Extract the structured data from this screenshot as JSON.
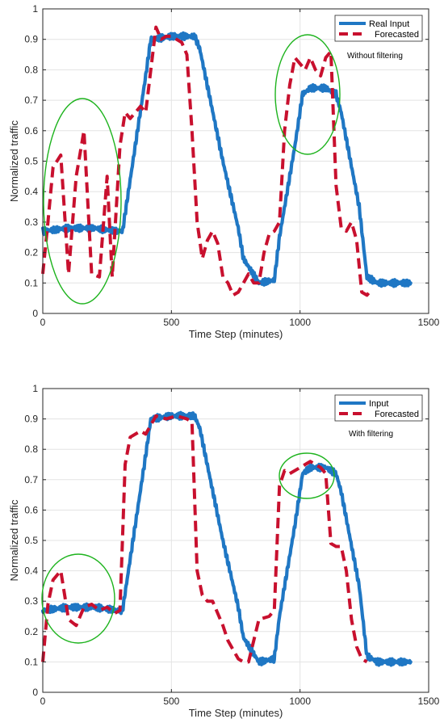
{
  "chart_data": [
    {
      "type": "line",
      "title": "",
      "xlabel": "Time Step (minutes)",
      "ylabel": "Normalized traffic",
      "xlim": [
        0,
        1500
      ],
      "ylim": [
        0,
        1
      ],
      "xticks": [
        "0",
        "500",
        "1000",
        "1500"
      ],
      "yticks": [
        "0",
        "0.1",
        "0.2",
        "0.3",
        "0.4",
        "0.5",
        "0.6",
        "0.7",
        "0.8",
        "0.9",
        "1"
      ],
      "grid": true,
      "legend_position": "top-right",
      "annotation": "Without filtering",
      "series": [
        {
          "name": "Real Input",
          "color": "#1f77c4",
          "style": "solid",
          "x": [
            0,
            100,
            200,
            290,
            310,
            400,
            420,
            500,
            590,
            610,
            700,
            760,
            780,
            840,
            900,
            920,
            980,
            1010,
            1040,
            1100,
            1140,
            1160,
            1230,
            1260,
            1300,
            1350,
            1400,
            1430
          ],
          "y": [
            0.27,
            0.28,
            0.28,
            0.27,
            0.27,
            0.78,
            0.9,
            0.91,
            0.91,
            0.87,
            0.5,
            0.28,
            0.18,
            0.1,
            0.11,
            0.25,
            0.55,
            0.72,
            0.74,
            0.74,
            0.72,
            0.66,
            0.35,
            0.12,
            0.1,
            0.1,
            0.1,
            0.1
          ]
        },
        {
          "name": "Forecasted",
          "color": "#c8102e",
          "style": "dashed",
          "x": [
            0,
            20,
            40,
            70,
            100,
            130,
            160,
            190,
            220,
            250,
            270,
            300,
            320,
            340,
            360,
            380,
            400,
            420,
            440,
            460,
            480,
            500,
            540,
            560,
            580,
            600,
            620,
            640,
            660,
            680,
            700,
            720,
            740,
            760,
            780,
            800,
            820,
            840,
            860,
            880,
            900,
            920,
            940,
            960,
            980,
            1000,
            1020,
            1040,
            1060,
            1080,
            1100,
            1120,
            1140,
            1160,
            1180,
            1200,
            1220,
            1240,
            1260,
            1280
          ],
          "y": [
            0.13,
            0.3,
            0.48,
            0.52,
            0.13,
            0.45,
            0.6,
            0.13,
            0.12,
            0.45,
            0.12,
            0.55,
            0.66,
            0.64,
            0.66,
            0.68,
            0.66,
            0.8,
            0.94,
            0.9,
            0.91,
            0.91,
            0.89,
            0.85,
            0.6,
            0.3,
            0.18,
            0.24,
            0.27,
            0.23,
            0.12,
            0.1,
            0.06,
            0.07,
            0.1,
            0.13,
            0.1,
            0.1,
            0.2,
            0.26,
            0.27,
            0.3,
            0.6,
            0.75,
            0.84,
            0.82,
            0.8,
            0.84,
            0.8,
            0.78,
            0.84,
            0.86,
            0.42,
            0.28,
            0.27,
            0.3,
            0.24,
            0.07,
            0.06,
            0.08
          ]
        }
      ]
    },
    {
      "type": "line",
      "title": "",
      "xlabel": "Time Step (minutes)",
      "ylabel": "Normalized traffic",
      "xlim": [
        0,
        1500
      ],
      "ylim": [
        0,
        1
      ],
      "xticks": [
        "0",
        "500",
        "1000",
        "1500"
      ],
      "yticks": [
        "0",
        "0.1",
        "0.2",
        "0.3",
        "0.4",
        "0.5",
        "0.6",
        "0.7",
        "0.8",
        "0.9",
        "1"
      ],
      "grid": true,
      "legend_position": "top-right",
      "annotation": "With filtering",
      "series": [
        {
          "name": "Input",
          "color": "#1f77c4",
          "style": "solid",
          "x": [
            0,
            100,
            200,
            290,
            310,
            400,
            420,
            500,
            590,
            610,
            700,
            760,
            780,
            840,
            900,
            920,
            980,
            1010,
            1040,
            1100,
            1140,
            1160,
            1230,
            1260,
            1300,
            1350,
            1400,
            1430
          ],
          "y": [
            0.27,
            0.28,
            0.28,
            0.27,
            0.27,
            0.78,
            0.9,
            0.91,
            0.91,
            0.87,
            0.5,
            0.28,
            0.18,
            0.1,
            0.11,
            0.25,
            0.55,
            0.72,
            0.74,
            0.74,
            0.72,
            0.66,
            0.35,
            0.12,
            0.1,
            0.1,
            0.1,
            0.1
          ]
        },
        {
          "name": "Forecasted",
          "color": "#c8102e",
          "style": "dashed",
          "x": [
            0,
            20,
            40,
            70,
            100,
            130,
            160,
            190,
            220,
            250,
            280,
            300,
            320,
            340,
            360,
            380,
            400,
            440,
            480,
            520,
            560,
            580,
            600,
            620,
            640,
            660,
            700,
            720,
            740,
            760,
            780,
            800,
            840,
            880,
            900,
            920,
            940,
            960,
            1000,
            1040,
            1080,
            1100,
            1120,
            1140,
            1160,
            1180,
            1200,
            1220,
            1240,
            1260
          ],
          "y": [
            0.1,
            0.29,
            0.37,
            0.4,
            0.24,
            0.22,
            0.28,
            0.29,
            0.27,
            0.28,
            0.26,
            0.27,
            0.75,
            0.84,
            0.85,
            0.86,
            0.85,
            0.91,
            0.9,
            0.91,
            0.9,
            0.89,
            0.4,
            0.32,
            0.3,
            0.3,
            0.22,
            0.17,
            0.14,
            0.11,
            0.1,
            0.1,
            0.24,
            0.25,
            0.27,
            0.68,
            0.73,
            0.72,
            0.74,
            0.76,
            0.74,
            0.72,
            0.49,
            0.48,
            0.48,
            0.4,
            0.24,
            0.15,
            0.11,
            0.1
          ]
        }
      ]
    }
  ]
}
